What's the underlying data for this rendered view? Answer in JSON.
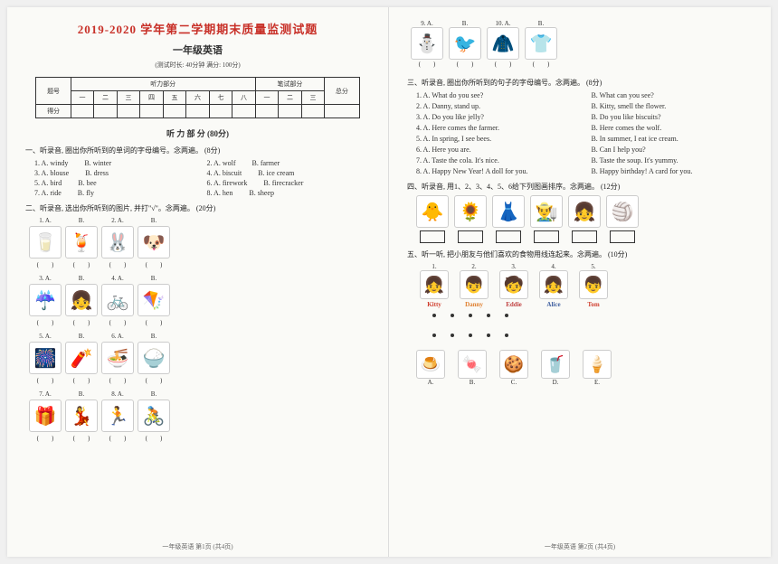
{
  "header": {
    "title_prefix": "2019-2020",
    "title_rest": " 学年第二学期期末质量监测试题",
    "subtitle": "一年级英语",
    "meta": "(测试时长: 40分钟  满分: 100分)",
    "row1": [
      "题号",
      "听力部分",
      "笔试部分",
      "总分"
    ],
    "row2_label": "题号",
    "cols": [
      "一",
      "二",
      "三",
      "四",
      "五",
      "六",
      "七",
      "八",
      "一",
      "二",
      "三"
    ],
    "score_label": "得分"
  },
  "listening_title": "听 力 部 分  (80分)",
  "q1": {
    "instr": "一、听录音, 圈出你所听到的单词的字母编号。念两遍。 (8分)",
    "items": [
      {
        "n": "1.",
        "a": "A. windy",
        "b": "B. winter"
      },
      {
        "n": "2.",
        "a": "A. wolf",
        "b": "B. farmer"
      },
      {
        "n": "3.",
        "a": "A. blouse",
        "b": "B. dress"
      },
      {
        "n": "4.",
        "a": "A. biscuit",
        "b": "B. ice cream"
      },
      {
        "n": "5.",
        "a": "A. bird",
        "b": "B. bee"
      },
      {
        "n": "6.",
        "a": "A. firework",
        "b": "B. firecracker"
      },
      {
        "n": "7.",
        "a": "A. ride",
        "b": "B. fly"
      },
      {
        "n": "8.",
        "a": "A. hen",
        "b": "B. sheep"
      }
    ]
  },
  "q2": {
    "instr": "二、听录音, 选出你所听到的图片, 并打\"√\"。念两遍。 (20分)",
    "rows": [
      [
        {
          "l": "1. A.",
          "e": "🥛"
        },
        {
          "l": "B.",
          "e": "🍹"
        },
        {
          "l": "2. A.",
          "e": "🐰"
        },
        {
          "l": "B.",
          "e": "🐶"
        }
      ],
      [
        {
          "l": "3. A.",
          "e": "☔"
        },
        {
          "l": "B.",
          "e": "👧"
        },
        {
          "l": "4. A.",
          "e": "🚲"
        },
        {
          "l": "B.",
          "e": "🪁"
        }
      ],
      [
        {
          "l": "5. A.",
          "e": "🎆"
        },
        {
          "l": "B.",
          "e": "🧨"
        },
        {
          "l": "6. A.",
          "e": "🍜"
        },
        {
          "l": "B.",
          "e": "🍚"
        }
      ],
      [
        {
          "l": "7. A.",
          "e": "🎁"
        },
        {
          "l": "B.",
          "e": "💃"
        },
        {
          "l": "8. A.",
          "e": "🏃"
        },
        {
          "l": "B.",
          "e": "🚴"
        }
      ]
    ]
  },
  "page2_top": {
    "items": [
      {
        "l": "9. A.",
        "e": "⛄"
      },
      {
        "l": "B.",
        "e": "🐦"
      },
      {
        "l": "10. A.",
        "e": "🧥"
      },
      {
        "l": "B.",
        "e": "👕"
      }
    ]
  },
  "q3": {
    "instr": "三、听录音, 圈出你所听到的句子的字母编号。念两遍。 (8分)",
    "items": [
      {
        "a": "1. A. What do you see?",
        "b": "B. What can you see?"
      },
      {
        "a": "2. A. Danny, stand up.",
        "b": "B. Kitty, smell the flower."
      },
      {
        "a": "3. A. Do you like jelly?",
        "b": "B. Do you like biscuits?"
      },
      {
        "a": "4. A. Here comes the farmer.",
        "b": "B. Here comes the wolf."
      },
      {
        "a": "5. A. In spring, I see bees.",
        "b": "B. In summer, I eat ice cream."
      },
      {
        "a": "6. A. Here you are.",
        "b": "B. Can I help you?"
      },
      {
        "a": "7. A. Taste the cola. It's nice.",
        "b": "B. Taste the soup. It's yummy."
      },
      {
        "a": "8. A. Happy New Year! A doll for you.",
        "b": "B. Happy birthday! A card for you."
      }
    ]
  },
  "q4": {
    "instr": "四、听录音, 用1、2、3、4、5、6给下列图画排序。念两遍。 (12分)",
    "pics": [
      "🐥",
      "🌻",
      "👗",
      "👨‍🌾",
      "👧",
      "🏐"
    ]
  },
  "q5": {
    "instr": "五、听一听, 把小朋友与他们喜欢的食物用线连起来。念两遍。 (10分)",
    "kids": [
      {
        "n": "1.",
        "name": "Kitty",
        "e": "👧",
        "c": "#d04030"
      },
      {
        "n": "2.",
        "name": "Danny",
        "e": "👦",
        "c": "#e08030"
      },
      {
        "n": "3.",
        "name": "Eddie",
        "e": "🧒",
        "c": "#c04040"
      },
      {
        "n": "4.",
        "name": "Alice",
        "e": "👧",
        "c": "#4060a0"
      },
      {
        "n": "5.",
        "name": "Tom",
        "e": "👦",
        "c": "#d04030"
      }
    ],
    "foods": [
      {
        "l": "A.",
        "e": "🍮"
      },
      {
        "l": "B.",
        "e": "🍬"
      },
      {
        "l": "C.",
        "e": "🍪"
      },
      {
        "l": "D.",
        "e": "🥤"
      },
      {
        "l": "E.",
        "e": "🍦"
      }
    ]
  },
  "footer1": "一年级英语  第1页 (共4页)",
  "footer2": "一年级英语  第2页 (共4页)"
}
